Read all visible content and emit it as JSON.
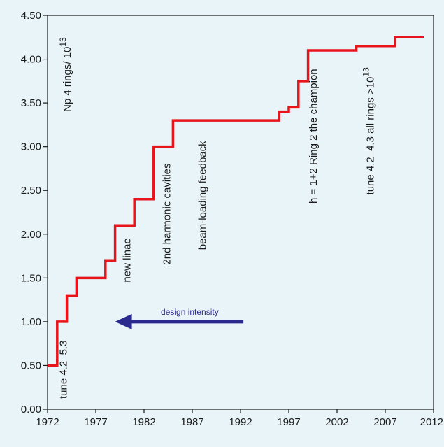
{
  "chart_data": {
    "type": "line",
    "step": true,
    "title": "",
    "xlabel": "",
    "ylabel": "Np 4 rings/ 10",
    "ylabel_superscript": "13",
    "xlim": [
      1972,
      2012
    ],
    "ylim": [
      0,
      4.5
    ],
    "x_ticks": [
      "1972",
      "1977",
      "1982",
      "1987",
      "1992",
      "1997",
      "2002",
      "2007",
      "2012"
    ],
    "y_ticks": [
      "0.00",
      "0.50",
      "1.00",
      "1.50",
      "2.00",
      "2.50",
      "3.00",
      "3.50",
      "4.00",
      "4.50"
    ],
    "grid": false,
    "series": [
      {
        "color": "#e8141c",
        "x": [
          1972,
          1973,
          1974,
          1975,
          1978,
          1979,
          1981,
          1983,
          1985,
          1996,
          1997,
          1998,
          1999,
          2004,
          2008,
          2011
        ],
        "y": [
          0.5,
          1.0,
          1.3,
          1.5,
          1.7,
          2.1,
          2.4,
          3.0,
          3.3,
          3.4,
          3.45,
          3.75,
          4.1,
          4.15,
          4.25,
          4.25
        ]
      }
    ],
    "design_intensity": {
      "label": "design intensity",
      "value": 1.0,
      "from_x": 1992.3,
      "to_x": 1979,
      "color": "#2b2a8f"
    },
    "annotations": [
      {
        "text": "tune 4.2–5.3",
        "x": 1974,
        "y": 0.12
      },
      {
        "text": "new linac",
        "x": 1980.6,
        "y": 1.45
      },
      {
        "text": "2nd harmonic cavities",
        "x": 1984.7,
        "y": 1.65
      },
      {
        "text": "beam-loading feedback",
        "x": 1988.4,
        "y": 1.82
      },
      {
        "text": "h = 1+2 Ring 2 the champion",
        "x": 1999.9,
        "y": 2.35
      },
      {
        "text": "tune 4.2–4.3 all rings >10",
        "sup": "13",
        "x": 2005.8,
        "y": 2.45
      }
    ]
  }
}
